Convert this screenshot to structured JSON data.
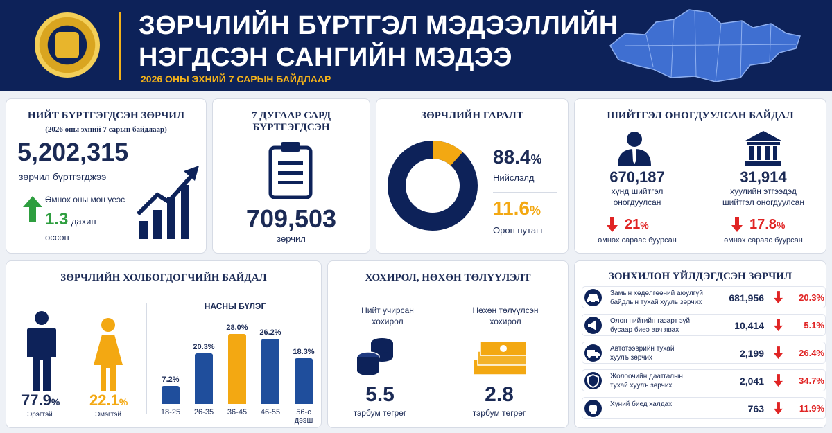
{
  "header": {
    "title_line1": "ЗӨРЧЛИЙН БҮРТГЭЛ МЭДЭЭЛЛИЙН",
    "title_line2": "НЭГДСЭН САНГИЙН МЭДЭЭ",
    "subtitle": "2026 ОНЫ ЭХНИЙ 7 САРЫН БАЙДЛААР"
  },
  "total": {
    "title": "НИЙТ БҮРТГЭГДСЭН ЗӨРЧИЛ",
    "note": "(2026 оны эхний 7 сарын байдлаар)",
    "value": "5,202,315",
    "caption": "зөрчил бүртгэгджээ",
    "compare": "Өмнөх оны мөн үеэс",
    "growth": "1.3",
    "growth_unit": "дахин",
    "growth_caption": "өссөн"
  },
  "july": {
    "title": "7 ДУГААР САРД БҮРТГЭГДСЭН",
    "value": "709,503",
    "caption": "зөрчил"
  },
  "origin": {
    "title": "ЗӨРЧЛИЙН ГАРАЛТ",
    "capital_pct": "88.4",
    "capital_label": "Нийслэлд",
    "rural_pct": "11.6",
    "rural_label": "Орон нутагт",
    "pct_sign": "%",
    "colors": {
      "capital": "#0d2259",
      "rural": "#f3a812"
    },
    "shares": [
      88.4,
      11.6
    ]
  },
  "sanctions": {
    "title": "ШИЙТГЭЛ ОНОГДУУЛСАН БАЙДАЛ",
    "person_value": "670,187",
    "person_label1": "хүнд шийтгэл",
    "person_label2": "оногдуулсан",
    "person_change": "21",
    "person_change_label": "өмнөх сараас буурсан",
    "org_value": "31,914",
    "org_label1": "хуулийн этгээдэд",
    "org_label2": "шийтгэл оногдуулсан",
    "org_change": "17.8",
    "org_change_label": "өмнөх сараас буурсан",
    "pct_sign": "%"
  },
  "offenders": {
    "title": "ЗӨРЧЛИЙН ХОЛБОГДОГЧИЙН БАЙДАЛ",
    "male_pct": "77.9",
    "male_label": "Эрэгтэй",
    "female_pct": "22.1",
    "female_label": "Эмэгтэй",
    "pct_sign": "%",
    "age_title": "НАСНЫ БҮЛЭГ"
  },
  "chart_data": {
    "type": "bar",
    "title": "НАСНЫ БҮЛЭГ",
    "categories": [
      "18-25",
      "26-35",
      "36-45",
      "46-55",
      "56-с дээш"
    ],
    "values": [
      7.2,
      20.3,
      28.0,
      26.2,
      18.3
    ],
    "value_labels": [
      "7.2%",
      "20.3%",
      "28.0%",
      "26.2%",
      "18.3%"
    ],
    "highlight_index": 2,
    "colors": {
      "default": "#1f4e9c",
      "highlight": "#f3a812"
    }
  },
  "damage": {
    "title": "ХОХИРОЛ, НӨХӨН ТӨЛҮҮЛЭЛТ",
    "incurred_label1": "Нийт учирсан",
    "incurred_label2": "хохирол",
    "incurred_value": "5.5",
    "incurred_unit": "тэрбум төгрөг",
    "repaid_label1": "Нөхөн төлүүлсэн",
    "repaid_label2": "хохирол",
    "repaid_value": "2.8",
    "repaid_unit": "тэрбум төгрөг"
  },
  "top": {
    "title": "ЗОНХИЛОН ҮЙЛДЭГДСЭН ЗӨРЧИЛ",
    "rows": [
      {
        "label1": "Замын хөдөлгөөний аюулгүй",
        "label2": "байдлын тухай хууль зөрчих",
        "value": "681,956",
        "pct": "20.3%",
        "icon": "car-icon"
      },
      {
        "label1": "Олон нийтийн газарт зүй",
        "label2": "бусаар биеэ авч явах",
        "value": "10,414",
        "pct": "5.1%",
        "icon": "megaphone-icon"
      },
      {
        "label1": "Автотээврийн тухай",
        "label2": "хуулъ зөрчих",
        "value": "2,199",
        "pct": "26.4%",
        "icon": "truck-icon"
      },
      {
        "label1": "Жолоочийн даатгалын",
        "label2": "тухай хуулъ зөрчих",
        "value": "2,041",
        "pct": "34.7%",
        "icon": "shield-icon"
      },
      {
        "label1": "Хүний биед халдах",
        "label2": "",
        "value": "763",
        "pct": "11.9%",
        "icon": "fist-icon"
      }
    ]
  }
}
